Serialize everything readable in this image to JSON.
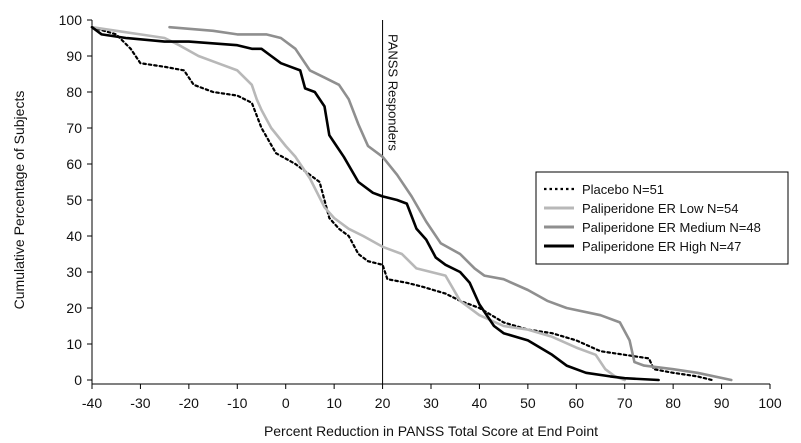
{
  "chart_data": {
    "type": "line",
    "xlabel": "Percent Reduction in PANSS Total Score at End Point",
    "ylabel": "Cumulative Percentage of Subjects",
    "xlim": [
      -40,
      100
    ],
    "ylim": [
      0,
      100
    ],
    "xticks": [
      -40,
      -30,
      -20,
      -10,
      0,
      10,
      20,
      30,
      40,
      50,
      60,
      70,
      80,
      90,
      100
    ],
    "yticks": [
      0,
      10,
      20,
      30,
      40,
      50,
      60,
      70,
      80,
      90,
      100
    ],
    "grid": false,
    "legend_position": "right",
    "annotation": {
      "label": "PANSS Responders",
      "x": 20
    },
    "series": [
      {
        "name": "Placebo N=51",
        "color": "#000000",
        "style": "dotted",
        "points": [
          [
            -40,
            98
          ],
          [
            -35,
            96
          ],
          [
            -32,
            92
          ],
          [
            -30,
            88
          ],
          [
            -25,
            87
          ],
          [
            -21,
            86
          ],
          [
            -19,
            82
          ],
          [
            -15,
            80
          ],
          [
            -10,
            79
          ],
          [
            -7,
            77
          ],
          [
            -5,
            70
          ],
          [
            -2,
            63
          ],
          [
            2,
            60
          ],
          [
            5,
            57
          ],
          [
            7,
            55
          ],
          [
            9,
            45
          ],
          [
            11,
            42
          ],
          [
            13,
            40
          ],
          [
            15,
            35
          ],
          [
            17,
            33
          ],
          [
            20,
            32
          ],
          [
            21,
            28
          ],
          [
            25,
            27
          ],
          [
            28,
            26
          ],
          [
            33,
            24
          ],
          [
            36,
            22
          ],
          [
            40,
            20
          ],
          [
            45,
            16
          ],
          [
            50,
            14
          ],
          [
            55,
            13
          ],
          [
            60,
            11
          ],
          [
            65,
            8
          ],
          [
            70,
            7
          ],
          [
            75,
            6
          ],
          [
            76,
            3
          ],
          [
            80,
            2
          ],
          [
            85,
            1
          ],
          [
            88,
            0
          ]
        ]
      },
      {
        "name": "Paliperidone ER Low N=54",
        "color": "#b8b8b8",
        "style": "solid",
        "points": [
          [
            -40,
            98
          ],
          [
            -35,
            97
          ],
          [
            -30,
            96
          ],
          [
            -25,
            95
          ],
          [
            -22,
            93
          ],
          [
            -18,
            90
          ],
          [
            -14,
            88
          ],
          [
            -10,
            86
          ],
          [
            -7,
            82
          ],
          [
            -6,
            78
          ],
          [
            -5,
            75
          ],
          [
            -3,
            70
          ],
          [
            0,
            65
          ],
          [
            2,
            62
          ],
          [
            5,
            56
          ],
          [
            8,
            48
          ],
          [
            10,
            45
          ],
          [
            13,
            42
          ],
          [
            16,
            40
          ],
          [
            20,
            37
          ],
          [
            24,
            35
          ],
          [
            27,
            31
          ],
          [
            30,
            30
          ],
          [
            33,
            29
          ],
          [
            36,
            22
          ],
          [
            38,
            20
          ],
          [
            40,
            18
          ],
          [
            45,
            15
          ],
          [
            50,
            14
          ],
          [
            55,
            12
          ],
          [
            60,
            9
          ],
          [
            64,
            7
          ],
          [
            66,
            3
          ],
          [
            68,
            1
          ],
          [
            70,
            0
          ]
        ]
      },
      {
        "name": "Paliperidone ER Medium N=48",
        "color": "#8f8f8f",
        "style": "solid",
        "points": [
          [
            -24,
            98
          ],
          [
            -15,
            97
          ],
          [
            -10,
            96
          ],
          [
            -4,
            96
          ],
          [
            -1,
            95
          ],
          [
            2,
            92
          ],
          [
            5,
            86
          ],
          [
            8,
            84
          ],
          [
            11,
            82
          ],
          [
            13,
            78
          ],
          [
            15,
            71
          ],
          [
            17,
            65
          ],
          [
            20,
            62
          ],
          [
            23,
            57
          ],
          [
            26,
            51
          ],
          [
            29,
            44
          ],
          [
            32,
            38
          ],
          [
            36,
            35
          ],
          [
            39,
            31
          ],
          [
            41,
            29
          ],
          [
            45,
            28
          ],
          [
            50,
            25
          ],
          [
            54,
            22
          ],
          [
            58,
            20
          ],
          [
            65,
            18
          ],
          [
            69,
            16
          ],
          [
            71,
            11
          ],
          [
            72,
            5
          ],
          [
            74,
            4
          ],
          [
            80,
            3
          ],
          [
            85,
            2
          ],
          [
            92,
            0
          ]
        ]
      },
      {
        "name": "Paliperidone ER High N=47",
        "color": "#000000",
        "style": "solid",
        "points": [
          [
            -40,
            98
          ],
          [
            -38,
            96
          ],
          [
            -33,
            95
          ],
          [
            -25,
            94
          ],
          [
            -20,
            94
          ],
          [
            -10,
            93
          ],
          [
            -7,
            92
          ],
          [
            -5,
            92
          ],
          [
            -3,
            90
          ],
          [
            -1,
            88
          ],
          [
            1,
            87
          ],
          [
            3,
            86
          ],
          [
            4,
            81
          ],
          [
            6,
            80
          ],
          [
            8,
            76
          ],
          [
            9,
            68
          ],
          [
            10,
            66
          ],
          [
            12,
            62
          ],
          [
            15,
            55
          ],
          [
            18,
            52
          ],
          [
            20,
            51
          ],
          [
            23,
            50
          ],
          [
            25,
            49
          ],
          [
            27,
            42
          ],
          [
            29,
            39
          ],
          [
            31,
            34
          ],
          [
            33,
            32
          ],
          [
            36,
            30
          ],
          [
            38,
            27
          ],
          [
            40,
            21
          ],
          [
            41,
            19
          ],
          [
            43,
            15
          ],
          [
            45,
            13
          ],
          [
            50,
            11
          ],
          [
            55,
            7
          ],
          [
            58,
            4
          ],
          [
            62,
            2
          ],
          [
            67,
            1
          ],
          [
            70,
            0.5
          ],
          [
            77,
            0
          ]
        ]
      }
    ]
  }
}
